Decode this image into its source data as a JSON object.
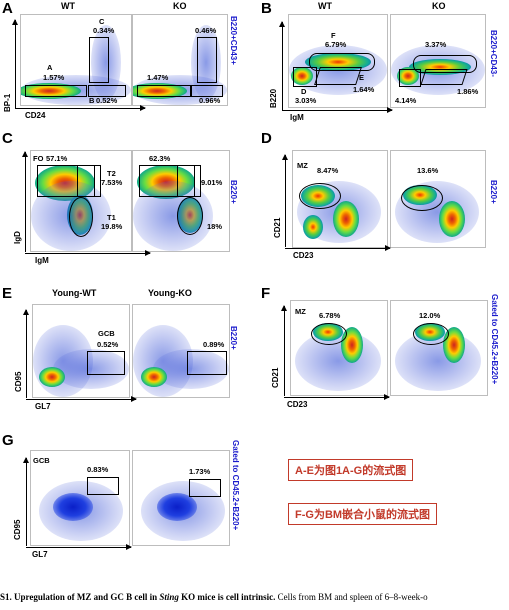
{
  "panels": {
    "A": {
      "letter": "A",
      "headers": [
        "WT",
        "KO"
      ],
      "side": "B220+CD43+",
      "ylabel": "BP-1",
      "xlabel": "CD24",
      "wt": {
        "gate_a": "A",
        "a": "1.57%",
        "gate_b": "B",
        "b": "0.52%",
        "gate_c": "C",
        "c": "0.34%"
      },
      "ko": {
        "a": "1.47%",
        "b": "0.96%",
        "c": "0.46%"
      }
    },
    "B": {
      "letter": "B",
      "headers": [
        "WT",
        "KO"
      ],
      "side": "B220+CD43-",
      "ylabel": "B220",
      "xlabel": "IgM",
      "wt": {
        "gate_f": "F",
        "f": "6.79%",
        "gate_d": "D",
        "d": "3.03%",
        "gate_e": "E",
        "e": "1.64%"
      },
      "ko": {
        "f": "3.37%",
        "d": "4.14%",
        "e": "1.86%"
      }
    },
    "C": {
      "letter": "C",
      "side": "B220+",
      "ylabel": "IgD",
      "xlabel": "IgM",
      "wt": {
        "gate_fo": "FO",
        "fo": "57.1%",
        "gate_t2": "T2",
        "t2": "7.53%",
        "gate_t1": "T1",
        "t1": "19.8%"
      },
      "ko": {
        "fo": "62.3%",
        "t2": "9.01%",
        "t1": "18%"
      }
    },
    "D": {
      "letter": "D",
      "side": "B220+",
      "ylabel": "CD21",
      "xlabel": "CD23",
      "wt": {
        "gate": "MZ",
        "mz": "8.47%"
      },
      "ko": {
        "mz": "13.6%"
      }
    },
    "E": {
      "letter": "E",
      "headers": [
        "Young-WT",
        "Young-KO"
      ],
      "side": "B220+",
      "ylabel": "CD95",
      "xlabel": "GL7",
      "wt": {
        "gate": "GCB",
        "gcb": "0.52%"
      },
      "ko": {
        "gcb": "0.89%"
      }
    },
    "F": {
      "letter": "F",
      "side": "Gated to CD45.2+B220+",
      "ylabel": "CD21",
      "xlabel": "CD23",
      "wt": {
        "gate": "MZ",
        "mz": "6.78%"
      },
      "ko": {
        "mz": "12.0%"
      }
    },
    "G": {
      "letter": "G",
      "side": "Gated to CD45.2+B220+",
      "ylabel": "CD95",
      "xlabel": "GL7",
      "wt": {
        "gate": "GCB",
        "gcb": "0.83%"
      },
      "ko": {
        "gcb": "1.73%"
      }
    }
  },
  "notes": {
    "n1": "A-E为图1A-G的流式图",
    "n2": "F-G为BM嵌合小鼠的流式图",
    "color": "#c23a2a"
  },
  "caption": {
    "bold_prefix": "S1. Upregulation of MZ and GC B cell in ",
    "italic": "Sting",
    "bold_suffix": " KO mice is cell intrinsic.",
    "rest": " Cells from BM and spleen of 6–8-week-o"
  }
}
